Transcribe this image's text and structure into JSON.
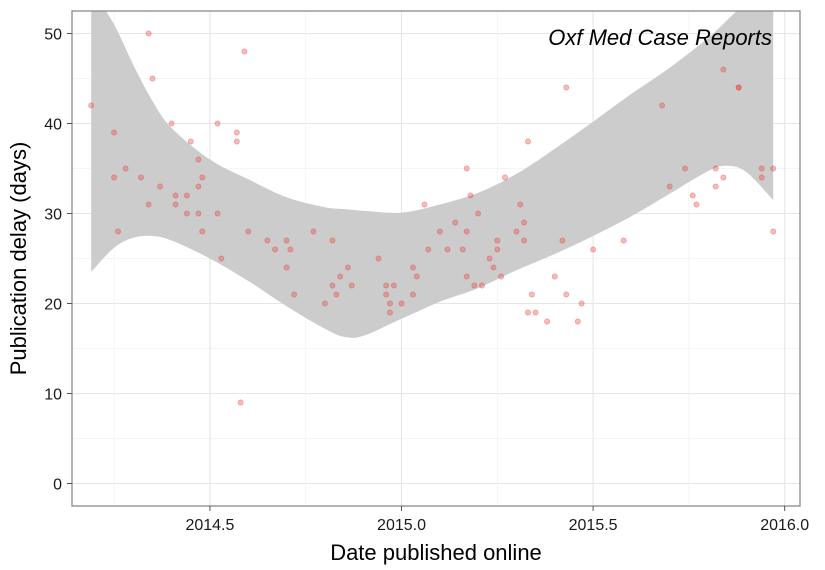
{
  "chart_data": {
    "type": "scatter",
    "title": "",
    "annotation": "Oxf Med Case Reports",
    "xlabel": "Date published online",
    "ylabel": "Publication delay (days)",
    "xlim": [
      2014.14,
      2016.04
    ],
    "ylim": [
      -2.5,
      52.5
    ],
    "x_ticks": [
      2014.5,
      2015.0,
      2015.5,
      2016.0
    ],
    "x_tick_labels": [
      "2014.5",
      "2015.0",
      "2015.5",
      "2016.0"
    ],
    "y_ticks": [
      0,
      10,
      20,
      30,
      40,
      50
    ],
    "y_tick_labels": [
      "0",
      "10",
      "20",
      "30",
      "40",
      "50"
    ],
    "grid": true,
    "point_color": "#e8403a",
    "band_color": "#cccccc",
    "points": [
      [
        2014.19,
        42
      ],
      [
        2014.25,
        39
      ],
      [
        2014.25,
        34
      ],
      [
        2014.26,
        28
      ],
      [
        2014.28,
        35
      ],
      [
        2014.32,
        34
      ],
      [
        2014.34,
        31
      ],
      [
        2014.34,
        50
      ],
      [
        2014.35,
        45
      ],
      [
        2014.37,
        33
      ],
      [
        2014.4,
        40
      ],
      [
        2014.41,
        32
      ],
      [
        2014.41,
        31
      ],
      [
        2014.44,
        32
      ],
      [
        2014.44,
        30
      ],
      [
        2014.45,
        38
      ],
      [
        2014.47,
        30
      ],
      [
        2014.47,
        36
      ],
      [
        2014.47,
        33
      ],
      [
        2014.48,
        28
      ],
      [
        2014.48,
        34
      ],
      [
        2014.52,
        30
      ],
      [
        2014.52,
        40
      ],
      [
        2014.53,
        25
      ],
      [
        2014.57,
        39
      ],
      [
        2014.57,
        38
      ],
      [
        2014.58,
        9
      ],
      [
        2014.59,
        48
      ],
      [
        2014.6,
        28
      ],
      [
        2014.65,
        27
      ],
      [
        2014.67,
        26
      ],
      [
        2014.7,
        24
      ],
      [
        2014.7,
        27
      ],
      [
        2014.71,
        26
      ],
      [
        2014.72,
        21
      ],
      [
        2014.77,
        28
      ],
      [
        2014.8,
        20
      ],
      [
        2014.82,
        22
      ],
      [
        2014.82,
        27
      ],
      [
        2014.83,
        21
      ],
      [
        2014.84,
        23
      ],
      [
        2014.86,
        24
      ],
      [
        2014.87,
        22
      ],
      [
        2014.94,
        25
      ],
      [
        2014.96,
        22
      ],
      [
        2014.96,
        21
      ],
      [
        2014.97,
        19
      ],
      [
        2014.97,
        20
      ],
      [
        2014.98,
        22
      ],
      [
        2015.0,
        20
      ],
      [
        2015.03,
        21
      ],
      [
        2015.03,
        24
      ],
      [
        2015.04,
        23
      ],
      [
        2015.06,
        31
      ],
      [
        2015.07,
        26
      ],
      [
        2015.1,
        28
      ],
      [
        2015.12,
        26
      ],
      [
        2015.14,
        29
      ],
      [
        2015.16,
        26
      ],
      [
        2015.17,
        28
      ],
      [
        2015.17,
        23
      ],
      [
        2015.17,
        35
      ],
      [
        2015.18,
        32
      ],
      [
        2015.19,
        22
      ],
      [
        2015.2,
        30
      ],
      [
        2015.21,
        22
      ],
      [
        2015.23,
        25
      ],
      [
        2015.24,
        24
      ],
      [
        2015.25,
        27
      ],
      [
        2015.25,
        26
      ],
      [
        2015.26,
        23
      ],
      [
        2015.27,
        34
      ],
      [
        2015.3,
        28
      ],
      [
        2015.31,
        31
      ],
      [
        2015.32,
        29
      ],
      [
        2015.32,
        27
      ],
      [
        2015.33,
        38
      ],
      [
        2015.33,
        19
      ],
      [
        2015.34,
        21
      ],
      [
        2015.35,
        19
      ],
      [
        2015.38,
        18
      ],
      [
        2015.4,
        23
      ],
      [
        2015.42,
        27
      ],
      [
        2015.43,
        44
      ],
      [
        2015.43,
        21
      ],
      [
        2015.46,
        18
      ],
      [
        2015.47,
        20
      ],
      [
        2015.5,
        26
      ],
      [
        2015.58,
        27
      ],
      [
        2015.68,
        42
      ],
      [
        2015.7,
        33
      ],
      [
        2015.74,
        35
      ],
      [
        2015.76,
        32
      ],
      [
        2015.77,
        31
      ],
      [
        2015.82,
        33
      ],
      [
        2015.82,
        35
      ],
      [
        2015.84,
        34
      ],
      [
        2015.84,
        46
      ],
      [
        2015.88,
        44
      ],
      [
        2015.88,
        44
      ],
      [
        2015.94,
        34
      ],
      [
        2015.94,
        35
      ],
      [
        2015.97,
        35
      ],
      [
        2015.97,
        28
      ]
    ],
    "band_x": [
      2014.19,
      2014.25,
      2014.3,
      2014.35,
      2014.4,
      2014.5,
      2014.6,
      2014.7,
      2014.8,
      2014.85,
      2014.9,
      2015.0,
      2015.1,
      2015.2,
      2015.3,
      2015.4,
      2015.5,
      2015.6,
      2015.7,
      2015.8,
      2015.85,
      2015.9,
      2015.97
    ],
    "band_upper": [
      55.0,
      51.0,
      46.5,
      42.5,
      39.5,
      36.0,
      33.8,
      31.8,
      30.7,
      30.5,
      30.3,
      30.1,
      31.0,
      32.3,
      34.4,
      37.2,
      40.2,
      43.3,
      46.2,
      49.5,
      51.5,
      53.5,
      56.0
    ],
    "band_lower": [
      23.5,
      26.2,
      27.3,
      27.5,
      27.0,
      25.0,
      22.5,
      19.7,
      17.2,
      16.3,
      16.4,
      18.3,
      20.2,
      21.7,
      23.7,
      25.5,
      27.5,
      29.7,
      32.2,
      34.7,
      35.3,
      34.6,
      31.5
    ]
  }
}
